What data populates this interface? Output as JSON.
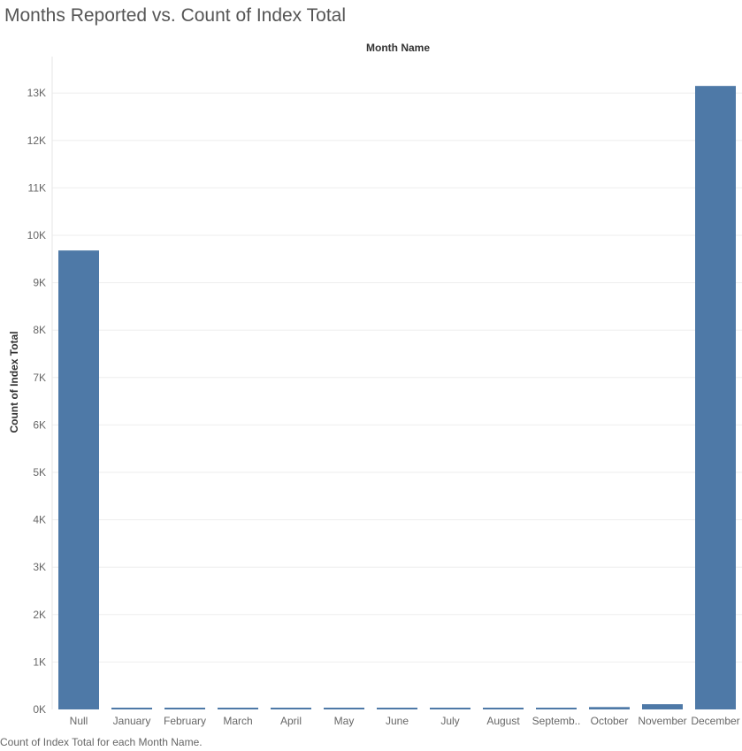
{
  "page": {
    "title": "Months Reported vs. Count of Index Total",
    "caption": "Count of Index Total for each Month Name."
  },
  "colors": {
    "bar": "#4e79a7",
    "gridline": "#eeeeee",
    "tick_text": "#666666",
    "title_text": "#555555"
  },
  "chart_data": {
    "type": "bar",
    "title": "Months Reported vs. Count of Index Total",
    "xlabel": "Month Name",
    "ylabel": "Count of Index Total",
    "x_axis_position": "top",
    "categories": [
      "Null",
      "January",
      "February",
      "March",
      "April",
      "May",
      "June",
      "July",
      "August",
      "September",
      "October",
      "November",
      "December"
    ],
    "category_labels": [
      "Null",
      "January",
      "February",
      "March",
      "April",
      "May",
      "June",
      "July",
      "August",
      "Septemb..",
      "October",
      "November",
      "December"
    ],
    "values": [
      9680,
      30,
      30,
      30,
      30,
      30,
      30,
      30,
      30,
      30,
      50,
      110,
      13150
    ],
    "ylim": [
      0,
      13300
    ],
    "yticks": [
      0,
      1000,
      2000,
      3000,
      4000,
      5000,
      6000,
      7000,
      8000,
      9000,
      10000,
      11000,
      12000,
      13000
    ],
    "ytick_labels": [
      "0K",
      "1K",
      "2K",
      "3K",
      "4K",
      "5K",
      "6K",
      "7K",
      "8K",
      "9K",
      "10K",
      "11K",
      "12K",
      "13K"
    ],
    "grid": true,
    "legend": "none",
    "caption": "Count of Index Total for each Month Name."
  }
}
